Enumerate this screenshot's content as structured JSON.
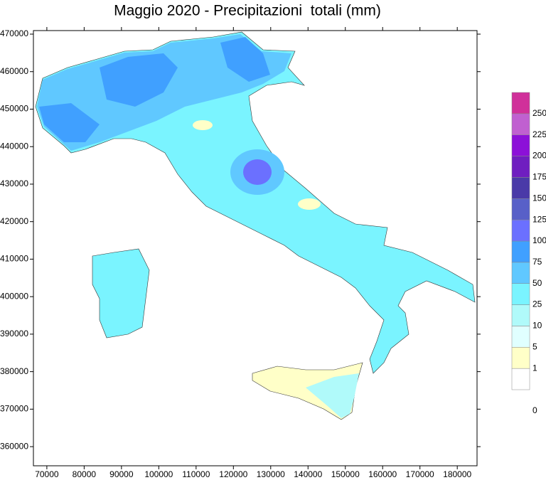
{
  "chart_data": {
    "type": "map",
    "title": "Maggio 2020 - Precipitazioni  totali (mm)",
    "xlim": [
      66400,
      185300
    ],
    "ylim": [
      354900,
      470950
    ],
    "xticks": [
      70000,
      80000,
      90000,
      100000,
      110000,
      120000,
      130000,
      140000,
      150000,
      160000,
      170000,
      180000
    ],
    "yticks": [
      360000,
      370000,
      380000,
      390000,
      400000,
      410000,
      420000,
      430000,
      440000,
      450000,
      460000,
      470000
    ],
    "colorbar": {
      "levels": [
        0,
        1,
        5,
        10,
        25,
        50,
        75,
        100,
        125,
        150,
        175,
        200,
        225,
        250
      ],
      "colors": [
        "#ffffff",
        "#ffffc8",
        "#e0ffff",
        "#b0fafa",
        "#7af4ff",
        "#60c8ff",
        "#40a0ff",
        "#6b70ff",
        "#5860c8",
        "#4a3aa8",
        "#6f1ec0",
        "#8c10d8",
        "#c060d0",
        "#d0309a"
      ]
    }
  }
}
